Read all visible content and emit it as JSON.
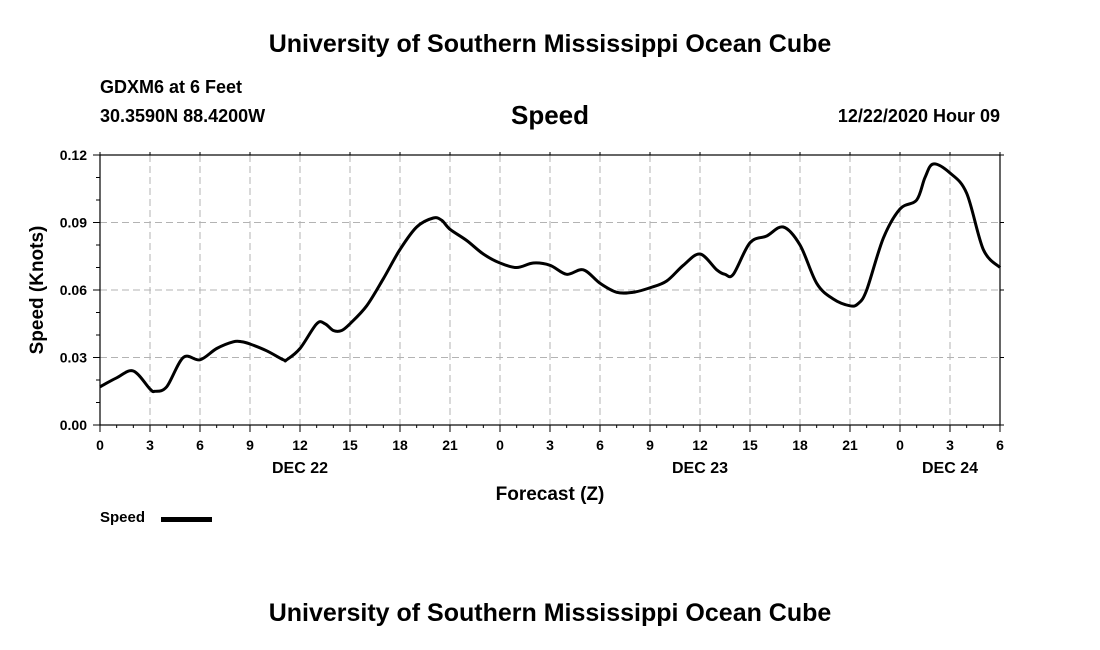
{
  "header": {
    "title": "University of Southern Mississippi Ocean Cube",
    "station": "GDXM6 at 6 Feet",
    "coordinates": "30.3590N 88.4200W",
    "chart_title": "Speed",
    "datetime": "12/22/2020 Hour 09"
  },
  "footer": {
    "title": "University of Southern Mississippi Ocean Cube"
  },
  "legend": {
    "label": "Speed"
  },
  "colors": {
    "line": "#000000",
    "grid": "#b3b3b3",
    "background": "#ffffff"
  },
  "chart_data": {
    "type": "line",
    "title": "Speed",
    "xlabel": "Forecast (Z)",
    "ylabel": "Speed (Knots)",
    "ylim": [
      0,
      0.12
    ],
    "xlim": [
      0,
      54
    ],
    "x_unit": "hours from 2020-12-22 00Z",
    "grid": true,
    "yticks": [
      {
        "value": 0,
        "label": "0.00"
      },
      {
        "value": 0.03,
        "label": "0.03"
      },
      {
        "value": 0.06,
        "label": "0.06"
      },
      {
        "value": 0.09,
        "label": "0.09"
      },
      {
        "value": 0.12,
        "label": "0.12"
      }
    ],
    "xticks": [
      {
        "value": 0,
        "label": "0"
      },
      {
        "value": 3,
        "label": "3"
      },
      {
        "value": 6,
        "label": "6"
      },
      {
        "value": 9,
        "label": "9"
      },
      {
        "value": 12,
        "label": "12"
      },
      {
        "value": 15,
        "label": "15"
      },
      {
        "value": 18,
        "label": "18"
      },
      {
        "value": 21,
        "label": "21"
      },
      {
        "value": 24,
        "label": "0"
      },
      {
        "value": 27,
        "label": "3"
      },
      {
        "value": 30,
        "label": "6"
      },
      {
        "value": 33,
        "label": "9"
      },
      {
        "value": 36,
        "label": "12"
      },
      {
        "value": 39,
        "label": "15"
      },
      {
        "value": 42,
        "label": "18"
      },
      {
        "value": 45,
        "label": "21"
      },
      {
        "value": 48,
        "label": "0"
      },
      {
        "value": 51,
        "label": "3"
      },
      {
        "value": 54,
        "label": "6"
      }
    ],
    "date_labels": [
      {
        "value": 12,
        "label": "DEC 22"
      },
      {
        "value": 36,
        "label": "DEC 23"
      },
      {
        "value": 51,
        "label": "DEC 24"
      }
    ],
    "series": [
      {
        "name": "Speed",
        "x": [
          0,
          1,
          2,
          3,
          3.3,
          4,
          5,
          6,
          7,
          8,
          8.5,
          9,
          10,
          11,
          11.2,
          12,
          13,
          13.5,
          14,
          14.5,
          15,
          16,
          17,
          18,
          19,
          20,
          20.5,
          21,
          22,
          23,
          24,
          25,
          26,
          27,
          28,
          29,
          30,
          31,
          32,
          33,
          34,
          35,
          36,
          37,
          37.5,
          38,
          39,
          40,
          41,
          42,
          43,
          44,
          45,
          45.5,
          46,
          47,
          48,
          49,
          49.5,
          50,
          51,
          52,
          53,
          54
        ],
        "values": [
          0.017,
          0.021,
          0.024,
          0.016,
          0.015,
          0.017,
          0.03,
          0.029,
          0.034,
          0.037,
          0.037,
          0.036,
          0.033,
          0.029,
          0.029,
          0.034,
          0.045,
          0.045,
          0.042,
          0.042,
          0.045,
          0.053,
          0.065,
          0.078,
          0.088,
          0.092,
          0.091,
          0.087,
          0.082,
          0.076,
          0.072,
          0.07,
          0.072,
          0.071,
          0.067,
          0.069,
          0.063,
          0.059,
          0.059,
          0.061,
          0.064,
          0.071,
          0.076,
          0.069,
          0.067,
          0.067,
          0.081,
          0.084,
          0.088,
          0.08,
          0.063,
          0.056,
          0.053,
          0.054,
          0.06,
          0.083,
          0.096,
          0.1,
          0.11,
          0.116,
          0.112,
          0.103,
          0.078,
          0.07
        ]
      }
    ]
  }
}
